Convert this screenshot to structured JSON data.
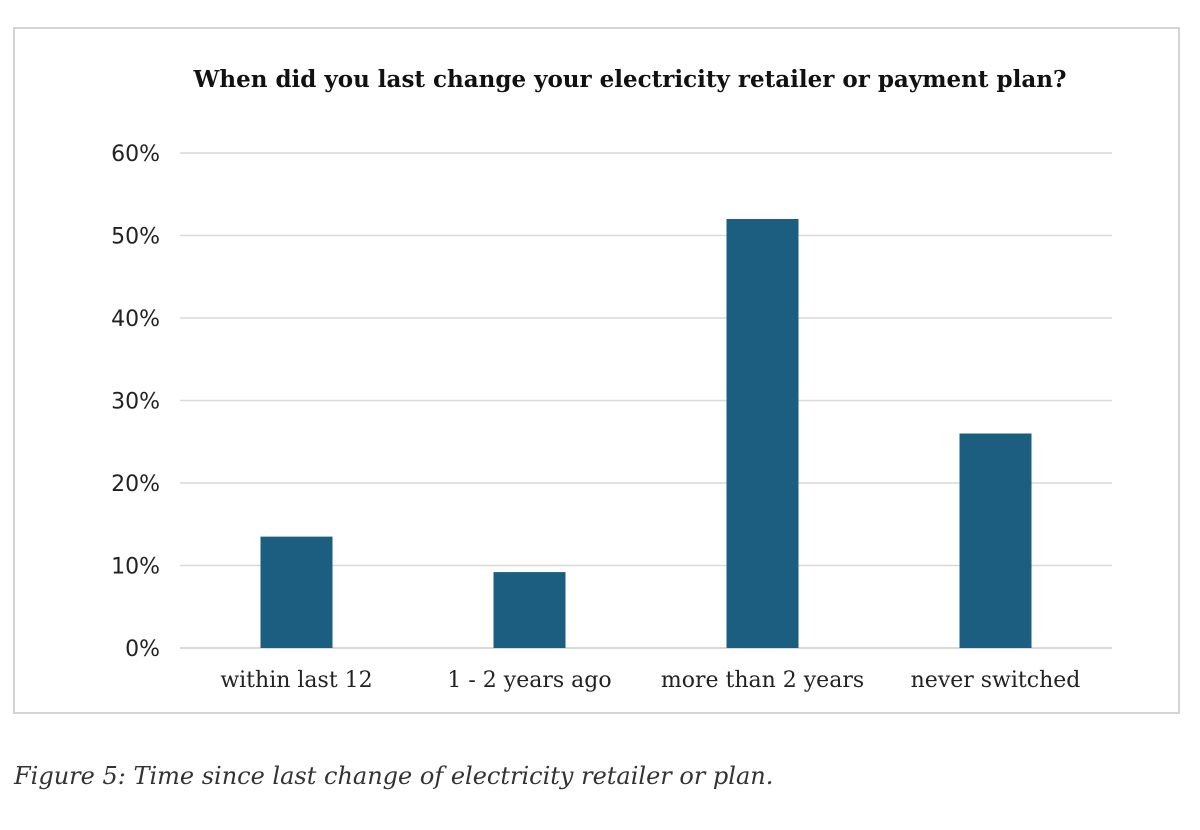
{
  "chart_data": {
    "type": "bar",
    "title": "When did you last change your electricity retailer or payment plan?",
    "categories": [
      "within last 12",
      "1 - 2 years ago",
      "more than 2 years",
      "never switched"
    ],
    "values": [
      13.5,
      9.2,
      52.0,
      26.0
    ],
    "y_unit": "%",
    "ylim": [
      0,
      60
    ],
    "y_ticks": [
      "0%",
      "10%",
      "20%",
      "30%",
      "40%",
      "50%",
      "60%"
    ],
    "xlabel": "",
    "ylabel": "",
    "grid": true,
    "legend": "none",
    "bar_color": "#1b5e80",
    "gridline_color": "#d9d9d9"
  },
  "caption": "Figure 5: Time since last change of electricity retailer or plan."
}
